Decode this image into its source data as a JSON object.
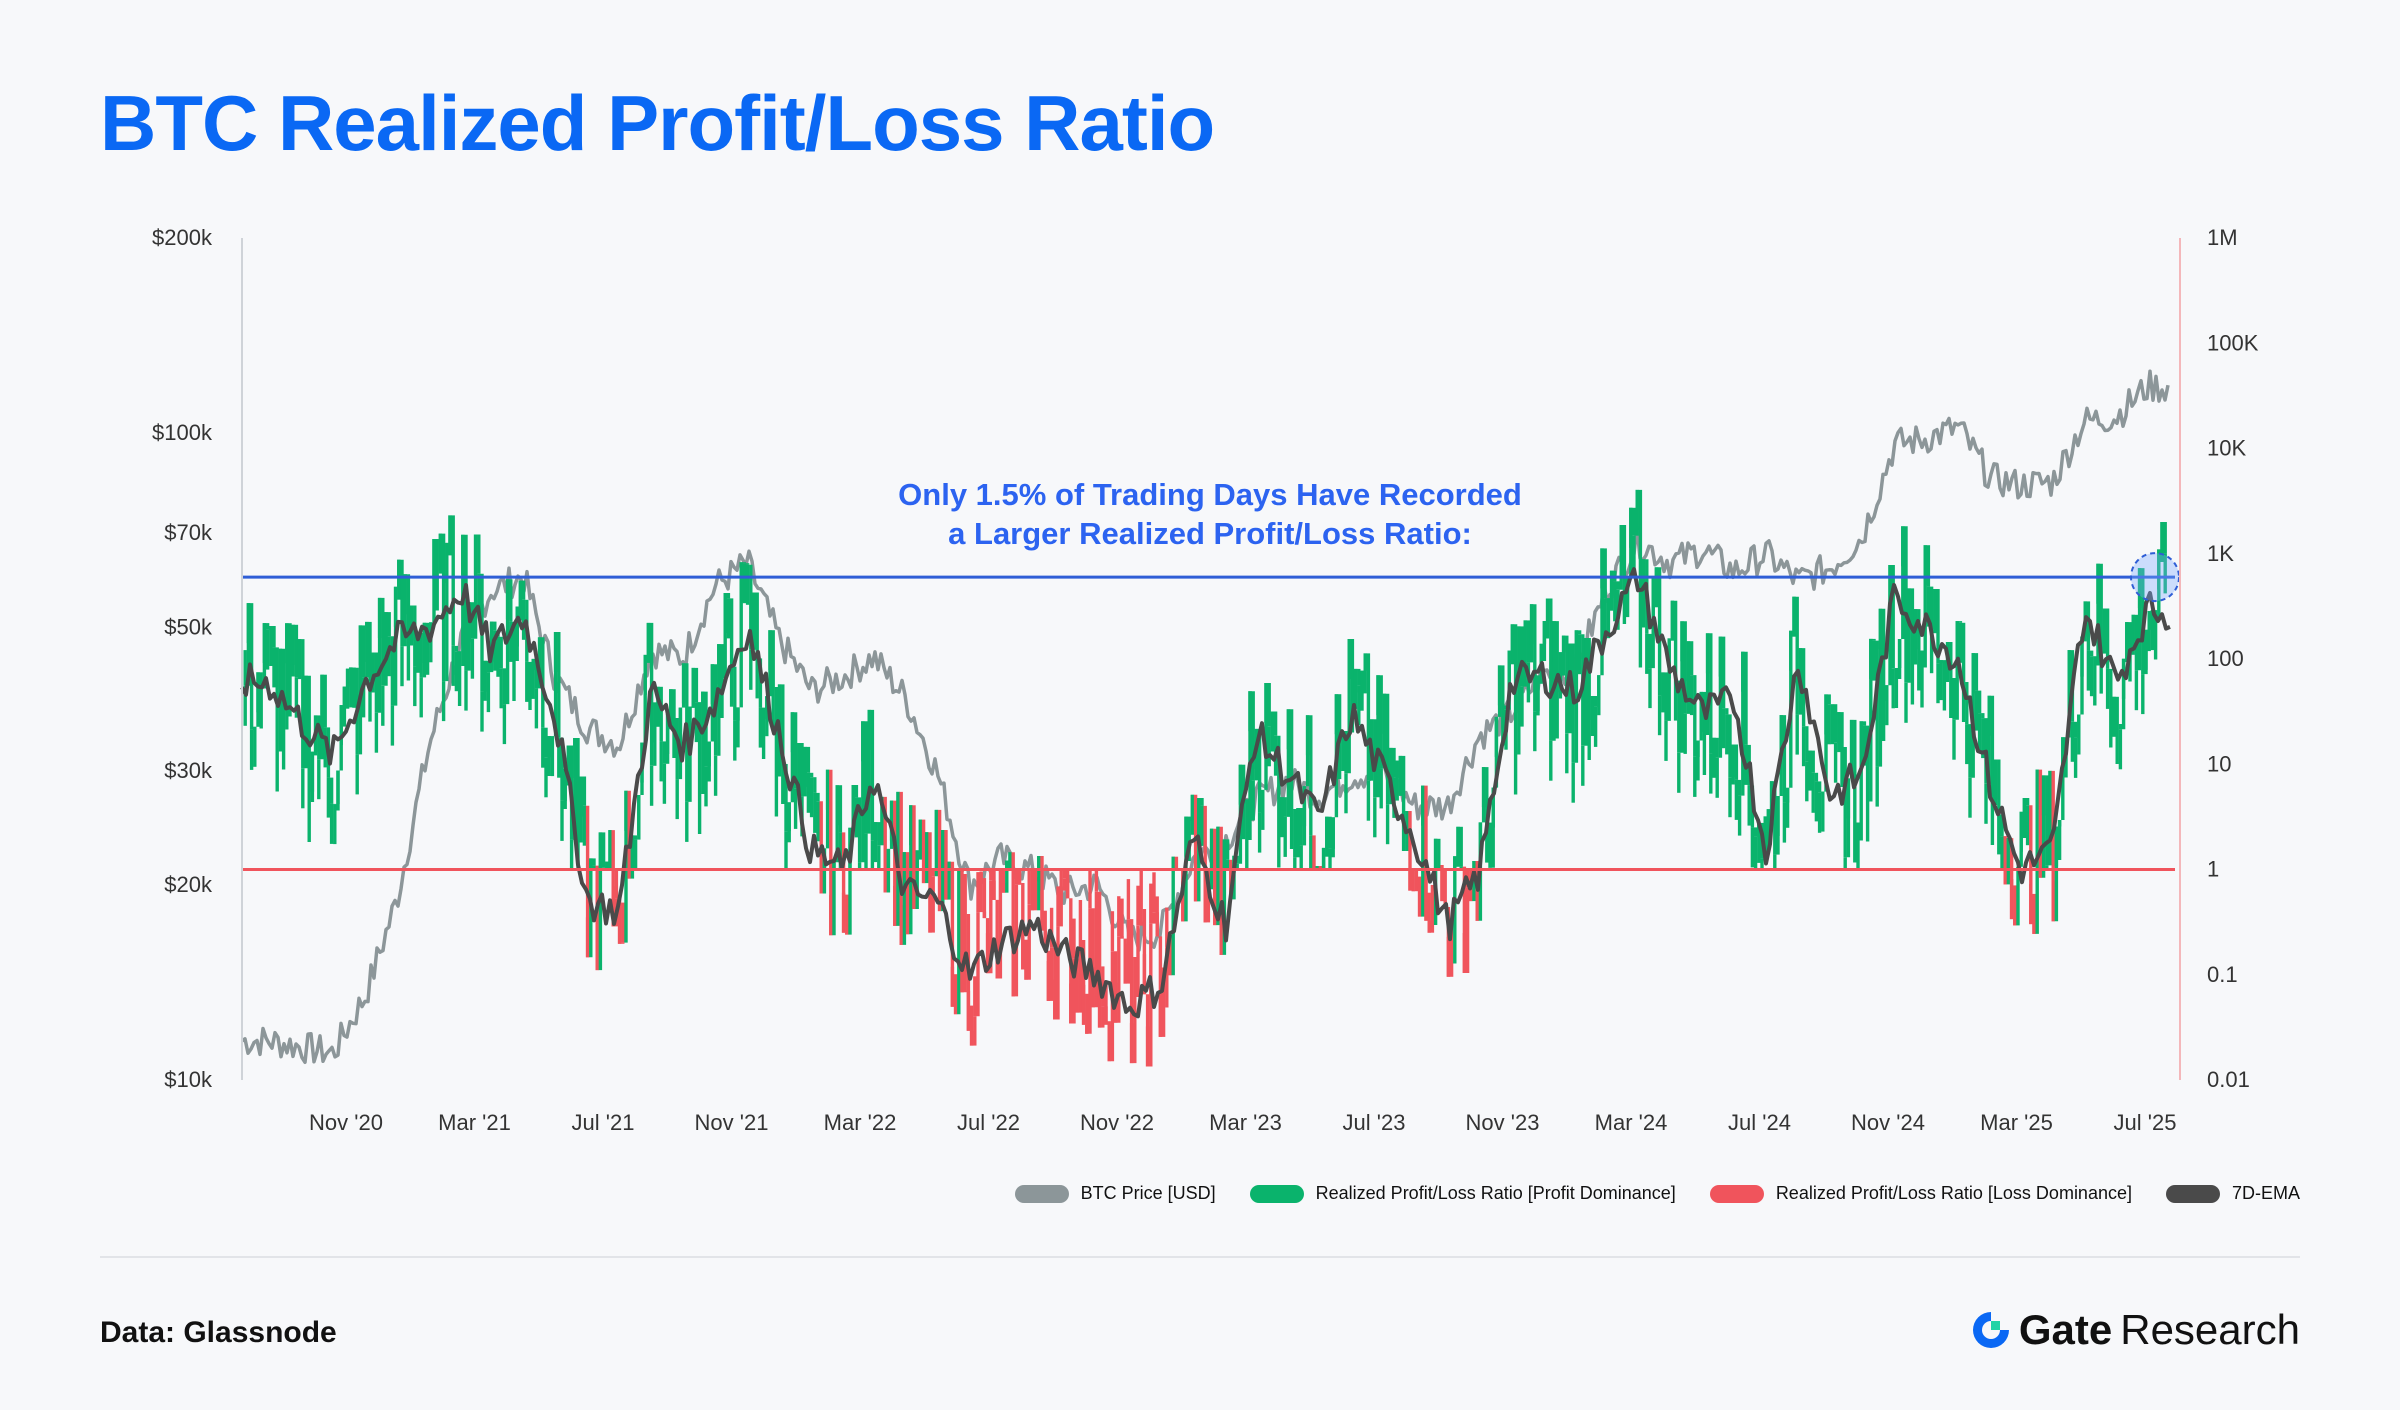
{
  "title": "BTC Realized Profit/Loss Ratio",
  "source": "Data: Glassnode",
  "brand": {
    "name": "Gate",
    "suffix": "Research"
  },
  "chart_data": {
    "type": "line",
    "title": "BTC Realized Profit/Loss Ratio",
    "annotation": [
      "Only 1.5% of Trading Days Have Recorded",
      "a Larger Realized Profit/Loss Ratio:"
    ],
    "x_ticks": [
      "Nov '20",
      "Mar '21",
      "Jul '21",
      "Nov '21",
      "Mar '22",
      "Jul '22",
      "Nov '22",
      "Mar '23",
      "Jul '23",
      "Nov '23",
      "Mar '24",
      "Jul '24",
      "Nov '24",
      "Mar '25",
      "Jul '25"
    ],
    "left_axis": {
      "scale": "log",
      "range": [
        10000,
        200000
      ],
      "ticks": [
        {
          "value": 200000,
          "label": "$200k"
        },
        {
          "value": 100000,
          "label": "$100k"
        },
        {
          "value": 70000,
          "label": "$70k"
        },
        {
          "value": 50000,
          "label": "$50k"
        },
        {
          "value": 30000,
          "label": "$30k"
        },
        {
          "value": 20000,
          "label": "$20k"
        },
        {
          "value": 10000,
          "label": "$10k"
        }
      ]
    },
    "right_axis": {
      "scale": "log",
      "range": [
        0.01,
        1000000
      ],
      "ticks": [
        {
          "value": 1000000,
          "label": "1M"
        },
        {
          "value": 100000,
          "label": "100K"
        },
        {
          "value": 10000,
          "label": "10K"
        },
        {
          "value": 1000,
          "label": "1K"
        },
        {
          "value": 100,
          "label": "100"
        },
        {
          "value": 10,
          "label": "10"
        },
        {
          "value": 1,
          "label": "1"
        },
        {
          "value": 0.1,
          "label": "0.1"
        },
        {
          "value": 0.01,
          "label": "0.01"
        }
      ]
    },
    "reference_lines": [
      {
        "axis": "right",
        "value": 1,
        "color": "#f0545c"
      },
      {
        "axis": "right",
        "value": 600,
        "color": "#2f5ed6"
      }
    ],
    "series": [
      {
        "name": "BTC Price [USD]",
        "color": "#8c9699",
        "axis": "left",
        "x": [
          "2020-08",
          "2020-10",
          "2020-11",
          "2020-12",
          "2021-01",
          "2021-02",
          "2021-03",
          "2021-04",
          "2021-05",
          "2021-06",
          "2021-07",
          "2021-08",
          "2021-09",
          "2021-10",
          "2021-11",
          "2021-12",
          "2022-01",
          "2022-02",
          "2022-03",
          "2022-04",
          "2022-05",
          "2022-06",
          "2022-07",
          "2022-08",
          "2022-09",
          "2022-10",
          "2022-11",
          "2022-12",
          "2023-01",
          "2023-02",
          "2023-03",
          "2023-04",
          "2023-05",
          "2023-06",
          "2023-07",
          "2023-08",
          "2023-09",
          "2023-10",
          "2023-11",
          "2023-12",
          "2024-01",
          "2024-02",
          "2024-03",
          "2024-04",
          "2024-05",
          "2024-06",
          "2024-07",
          "2024-08",
          "2024-09",
          "2024-10",
          "2024-11",
          "2024-12",
          "2025-01",
          "2025-02",
          "2025-03",
          "2025-04",
          "2025-05",
          "2025-06",
          "2025-07",
          "2025-08"
        ],
        "y": [
          11500,
          11000,
          13500,
          19000,
          33000,
          48000,
          57000,
          60000,
          42000,
          35000,
          33000,
          46000,
          45000,
          58000,
          63000,
          48000,
          40000,
          42000,
          45000,
          39000,
          30000,
          20000,
          22000,
          21000,
          19500,
          20000,
          16500,
          17000,
          22000,
          23500,
          27000,
          29000,
          27500,
          29500,
          30000,
          26500,
          26500,
          34000,
          37000,
          42500,
          43000,
          58000,
          68000,
          63000,
          66000,
          61000,
          65000,
          59000,
          62000,
          69000,
          96000,
          98000,
          102000,
          85000,
          83000,
          84000,
          104000,
          106000,
          118000,
          117000
        ]
      },
      {
        "name": "Realized Profit/Loss Ratio [Profit Dominance]",
        "color": "#0ab36c",
        "axis": "right"
      },
      {
        "name": "Realized Profit/Loss Ratio [Loss Dominance]",
        "color": "#f0545c",
        "axis": "right"
      },
      {
        "name": "7D-EMA",
        "color": "#4a4a4a",
        "axis": "right",
        "x": [
          "2020-08",
          "2020-09",
          "2020-10",
          "2020-11",
          "2020-12",
          "2021-01",
          "2021-02",
          "2021-03",
          "2021-04",
          "2021-05",
          "2021-06",
          "2021-07",
          "2021-08",
          "2021-09",
          "2021-10",
          "2021-11",
          "2021-12",
          "2022-01",
          "2022-02",
          "2022-03",
          "2022-04",
          "2022-05",
          "2022-06",
          "2022-07",
          "2022-08",
          "2022-09",
          "2022-10",
          "2022-11",
          "2022-12",
          "2023-01",
          "2023-02",
          "2023-03",
          "2023-04",
          "2023-05",
          "2023-06",
          "2023-07",
          "2023-08",
          "2023-09",
          "2023-10",
          "2023-11",
          "2023-12",
          "2024-01",
          "2024-02",
          "2024-03",
          "2024-04",
          "2024-05",
          "2024-06",
          "2024-07",
          "2024-08",
          "2024-09",
          "2024-10",
          "2024-11",
          "2024-12",
          "2025-01",
          "2025-02",
          "2025-03",
          "2025-04",
          "2025-05",
          "2025-06",
          "2025-07",
          "2025-08"
        ],
        "y": [
          60,
          25,
          12,
          60,
          150,
          200,
          450,
          120,
          260,
          30,
          0.5,
          0.4,
          50,
          15,
          40,
          200,
          20,
          1.5,
          1.0,
          8,
          0.6,
          0.5,
          0.1,
          0.2,
          0.3,
          0.15,
          0.1,
          0.05,
          0.08,
          2,
          0.3,
          20,
          8,
          3,
          30,
          8,
          2,
          0.3,
          0.9,
          60,
          70,
          50,
          200,
          600,
          80,
          30,
          40,
          1.5,
          100,
          5,
          8,
          400,
          200,
          100,
          6,
          1,
          1.5,
          300,
          60,
          300,
          250
        ]
      }
    ]
  }
}
